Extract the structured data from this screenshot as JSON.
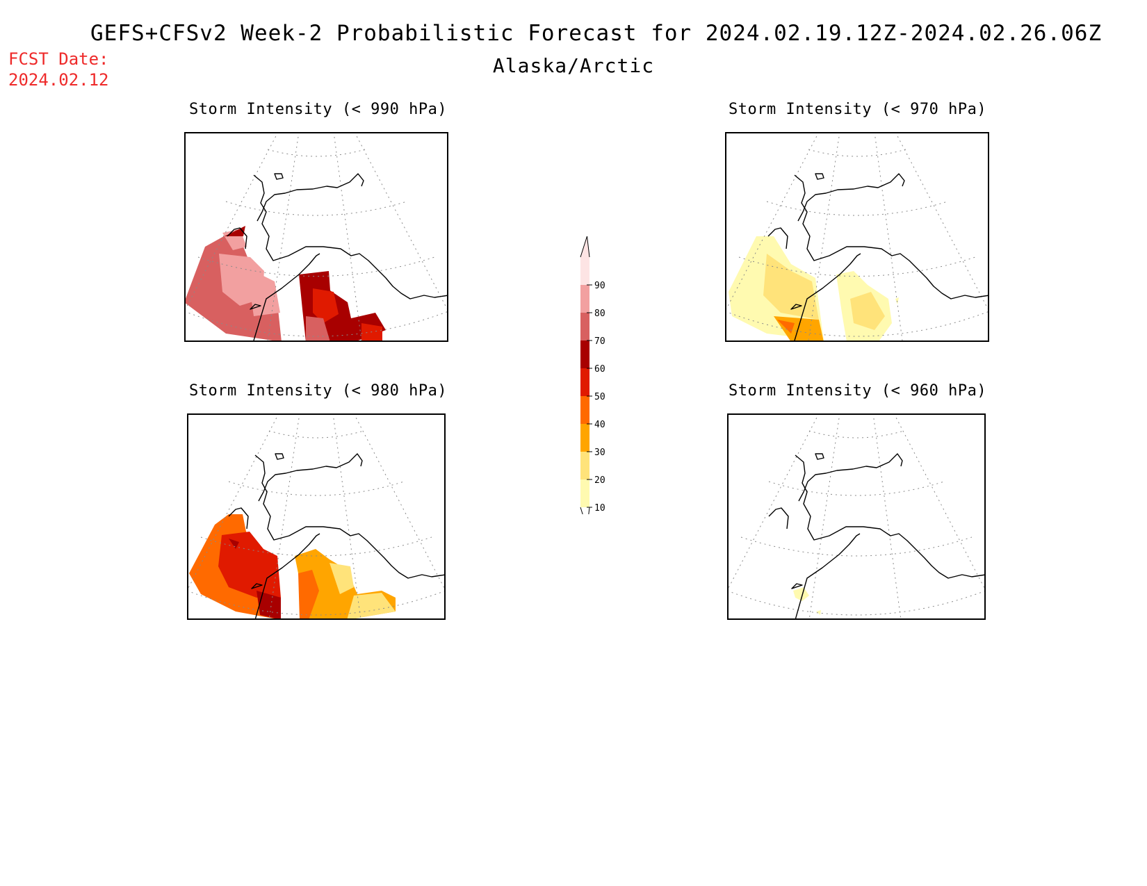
{
  "header": {
    "title": "GEFS+CFSv2 Week-2 Probabilistic Forecast for 2024.02.19.12Z-2024.02.26.06Z",
    "subtitle": "Alaska/Arctic",
    "fcst_label": "FCST Date:",
    "fcst_date": "2024.02.12"
  },
  "panels": [
    {
      "id": "p990",
      "title": "Storm Intensity (< 990 hPa)"
    },
    {
      "id": "p970",
      "title": "Storm Intensity (< 970 hPa)"
    },
    {
      "id": "p980",
      "title": "Storm Intensity (< 980 hPa)"
    },
    {
      "id": "p960",
      "title": "Storm Intensity (< 960 hPa)"
    }
  ],
  "legend": {
    "ticks": [
      "10",
      "20",
      "30",
      "40",
      "50",
      "60",
      "70",
      "80",
      "90"
    ],
    "colors": [
      "#fffab0",
      "#ffe37a",
      "#ffa500",
      "#ff6a00",
      "#e01a00",
      "#a80000",
      "#d86060",
      "#f2a0a0",
      "#fde4e4"
    ]
  }
}
